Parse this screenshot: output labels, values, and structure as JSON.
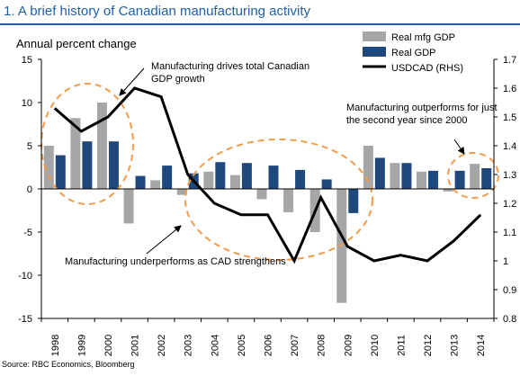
{
  "figure": {
    "title": "1. A brief history of Canadian manufacturing activity",
    "source": "Source: RBC Economics, Bloomberg"
  },
  "colors": {
    "title": "#1f5fa8",
    "mfg": "#a6a6a6",
    "gdp": "#1f497d",
    "usdcad": "#000000",
    "annotation": "#f29b4a"
  },
  "chart_data": {
    "type": "bar",
    "ylabel": "Annual percent change",
    "categories": [
      "1998",
      "1999",
      "2000",
      "2001",
      "2002",
      "2003",
      "2004",
      "2005",
      "2006",
      "2007",
      "2008",
      "2009",
      "2010",
      "2011",
      "2012",
      "2013",
      "2014"
    ],
    "ylim": [
      -15,
      15
    ],
    "yticks": [
      -15,
      -10,
      -5,
      0,
      5,
      10,
      15
    ],
    "y2lim": [
      0.8,
      1.7
    ],
    "y2ticks": [
      0.8,
      0.9,
      1.0,
      1.1,
      1.2,
      1.3,
      1.4,
      1.5,
      1.6,
      1.7
    ],
    "series": [
      {
        "name": "Real mfg GDP",
        "type": "bar",
        "values": [
          5.0,
          8.2,
          10.0,
          -4.0,
          1.0,
          -0.7,
          2.0,
          1.6,
          -1.2,
          -2.7,
          -5.0,
          -13.2,
          5.0,
          3.0,
          2.0,
          -0.3,
          2.9
        ]
      },
      {
        "name": "Real GDP",
        "type": "bar",
        "values": [
          3.9,
          5.5,
          5.5,
          1.5,
          2.7,
          1.8,
          3.1,
          3.0,
          2.7,
          2.2,
          1.1,
          -2.8,
          3.6,
          3.0,
          2.1,
          2.1,
          2.4
        ]
      },
      {
        "name": "USDCAD (RHS)",
        "type": "line",
        "axis": "right",
        "values": [
          1.53,
          1.45,
          1.5,
          1.6,
          1.57,
          1.3,
          1.2,
          1.16,
          1.16,
          1.0,
          1.22,
          1.05,
          1.0,
          1.02,
          1.0,
          1.07,
          1.16
        ]
      }
    ],
    "legend": "top-right",
    "annotations": [
      {
        "text": "Manufacturing drives total Canadian GDP growth"
      },
      {
        "text": "Manufacturing outperforms for just the second year since 2000"
      },
      {
        "text": "Manufacturing underperforms as CAD strengthens"
      }
    ]
  }
}
